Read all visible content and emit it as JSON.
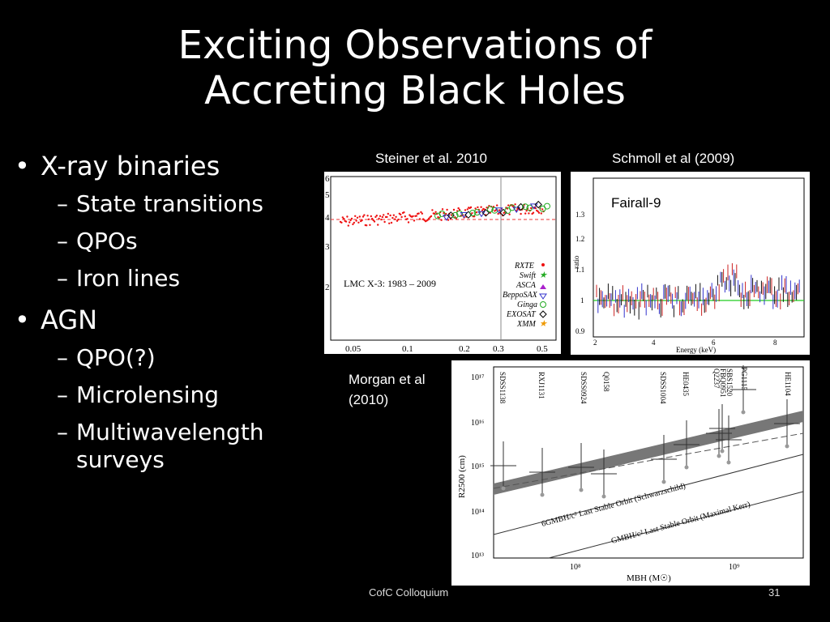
{
  "slide": {
    "title_line1": "Exciting Observations of",
    "title_line2": "Accreting Black Holes",
    "footer_center": "CofC Colloquium",
    "page_number": "31"
  },
  "bullets": [
    {
      "text": "X-ray binaries",
      "subs": [
        "State transitions",
        "QPOs",
        "Iron lines"
      ]
    },
    {
      "text": "AGN",
      "subs": [
        "QPO(?)",
        "Microlensing",
        "Multiwavelength surveys"
      ]
    }
  ],
  "figures": {
    "steiner": {
      "caption": "Steiner et al. 2010",
      "annotation": "LMC X-3: 1983 – 2009",
      "yticks": [
        "6",
        "5",
        "4",
        "3",
        "2"
      ],
      "xticks": [
        "0.05",
        "0.1",
        "0.2",
        "0.3",
        "0.5"
      ],
      "legend": [
        "RXTE",
        "Swift",
        "ASCA",
        "BeppoSAX",
        "Ginga",
        "EXOSAT",
        "XMM"
      ]
    },
    "schmoll": {
      "caption": "Schmoll et al (2009)",
      "label": "Fairall-9",
      "ylabel": "ratio",
      "xlabel": "Energy (keV)",
      "yticks": [
        "1.3",
        "1.2",
        "1.1",
        "1",
        "0.9"
      ],
      "xticks": [
        "2",
        "4",
        "6",
        "8"
      ]
    },
    "morgan": {
      "caption_line1": "Morgan et al",
      "caption_line2": "(2010)",
      "ylabel": "R2500 (cm)",
      "xlabel": "MBH (M☉)",
      "yticks": [
        "10¹⁷",
        "10¹⁶",
        "10¹⁵",
        "10¹⁴",
        "10¹³"
      ],
      "xticks": [
        "10⁸",
        "10⁹"
      ],
      "objects": [
        "SDSS1138",
        "RXJ1131",
        "SDSS0924",
        "Q0158",
        "SDSS1004",
        "HE0435",
        "Q2237",
        "FBQ0951",
        "SBS1520",
        "PG1115",
        "HE1104"
      ],
      "line1": "6GMBH/c²   Last Stable Orbit (Schwarzschild)",
      "line2": "GMBH/c²   Last Stable Orbit (Maximal Kerr)"
    }
  }
}
